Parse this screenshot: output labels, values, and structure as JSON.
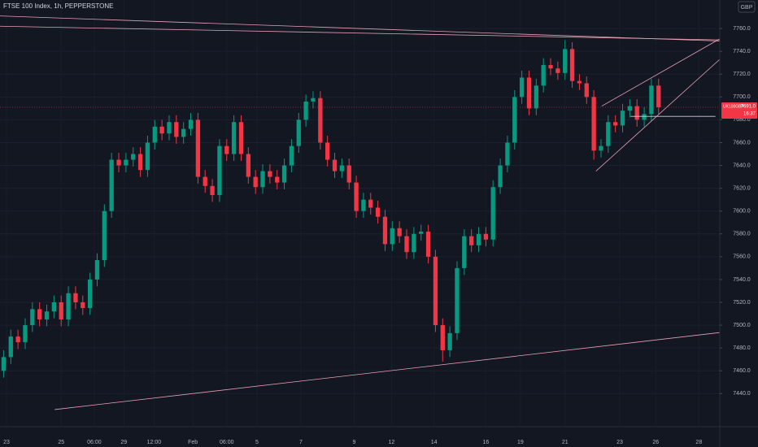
{
  "chart_data": {
    "type": "candlestick",
    "title": "FTSE 100 Index, 1h, PEPPERSTONE",
    "currency": "GBP",
    "up_color": "#089981",
    "down_color": "#f23645",
    "grid": true,
    "xlim": [
      0,
      100
    ],
    "ylim": [
      7411,
      7785
    ],
    "yticks": [
      {
        "value": 7440,
        "label": "7440.0"
      },
      {
        "value": 7460,
        "label": "7460.0"
      },
      {
        "value": 7480,
        "label": "7480.0"
      },
      {
        "value": 7500,
        "label": "7500.0"
      },
      {
        "value": 7520,
        "label": "7520.0"
      },
      {
        "value": 7540,
        "label": "7540.0"
      },
      {
        "value": 7560,
        "label": "7560.0"
      },
      {
        "value": 7580,
        "label": "7580.0"
      },
      {
        "value": 7600,
        "label": "7600.0"
      },
      {
        "value": 7620,
        "label": "7620.0"
      },
      {
        "value": 7640,
        "label": "7640.0"
      },
      {
        "value": 7660,
        "label": "7660.0"
      },
      {
        "value": 7680,
        "label": "7680.0"
      },
      {
        "value": 7700,
        "label": "7700.0"
      },
      {
        "value": 7720,
        "label": "7720.0"
      },
      {
        "value": 7740,
        "label": "7740.0"
      },
      {
        "value": 7760,
        "label": "7760.0"
      }
    ],
    "xticks": [
      {
        "value": 0.9,
        "label": "23"
      },
      {
        "value": 8.5,
        "label": "25"
      },
      {
        "value": 13.1,
        "label": "06:00"
      },
      {
        "value": 17.2,
        "label": "29"
      },
      {
        "value": 21.4,
        "label": "12:00"
      },
      {
        "value": 26.8,
        "label": "Feb"
      },
      {
        "value": 31.5,
        "label": "06:00"
      },
      {
        "value": 35.7,
        "label": "5"
      },
      {
        "value": 41.8,
        "label": "7"
      },
      {
        "value": 49.2,
        "label": "9"
      },
      {
        "value": 54.4,
        "label": "12"
      },
      {
        "value": 60.3,
        "label": "14"
      },
      {
        "value": 67.5,
        "label": "16"
      },
      {
        "value": 72.3,
        "label": "19"
      },
      {
        "value": 78.5,
        "label": "21"
      },
      {
        "value": 86.1,
        "label": "23"
      },
      {
        "value": 91.1,
        "label": "26"
      },
      {
        "value": 97.1,
        "label": "28"
      }
    ],
    "x": [
      0.5,
      1.5,
      2.5,
      3.5,
      4.5,
      5.5,
      6.5,
      7.5,
      8.5,
      9.5,
      10.5,
      11.5,
      12.5,
      13.5,
      14.5,
      15.5,
      16.5,
      17.5,
      18.5,
      19.5,
      20.5,
      21.5,
      22.5,
      23.5,
      24.5,
      25.5,
      26.5,
      27.5,
      28.5,
      29.5,
      30.5,
      31.5,
      32.5,
      33.5,
      34.5,
      35.5,
      36.5,
      37.5,
      38.5,
      39.5,
      40.5,
      41.5,
      42.5,
      43.5,
      44.5,
      45.5,
      46.5,
      47.5,
      48.5,
      49.5,
      50.5,
      51.5,
      52.5,
      53.5,
      54.5,
      55.5,
      56.5,
      57.5,
      58.5,
      59.5,
      60.5,
      61.5,
      62.5,
      63.5,
      64.5,
      65.5,
      66.5,
      67.5,
      68.5,
      69.5,
      70.5,
      71.5,
      72.5,
      73.5,
      74.5,
      75.5,
      76.5,
      77.5,
      78.5,
      79.5,
      80.5,
      81.5,
      82.5,
      83.5,
      84.5,
      85.5,
      86.5,
      87.5,
      88.5,
      89.5,
      90.5,
      91.5
    ],
    "open": [
      7460,
      7472,
      7490,
      7485,
      7500,
      7514,
      7505,
      7512,
      7520,
      7505,
      7528,
      7520,
      7515,
      7540,
      7557,
      7600,
      7645,
      7640,
      7645,
      7650,
      7636,
      7660,
      7674,
      7668,
      7678,
      7665,
      7672,
      7680,
      7630,
      7622,
      7614,
      7657,
      7650,
      7678,
      7650,
      7630,
      7621,
      7635,
      7630,
      7625,
      7640,
      7657,
      7680,
      7696,
      7699,
      7660,
      7645,
      7635,
      7640,
      7625,
      7600,
      7610,
      7603,
      7595,
      7571,
      7585,
      7578,
      7564,
      7580,
      7582,
      7560,
      7500,
      7478,
      7493,
      7550,
      7578,
      7570,
      7580,
      7575,
      7621,
      7640,
      7660,
      7700,
      7717,
      7690,
      7710,
      7728,
      7725,
      7721,
      7742,
      7714,
      7712,
      7700,
      7653,
      7657,
      7678,
      7675,
      7688,
      7692,
      7680,
      7685,
      7710
    ],
    "high": [
      7478,
      7496,
      7496,
      7506,
      7520,
      7520,
      7518,
      7526,
      7526,
      7534,
      7534,
      7526,
      7546,
      7563,
      7606,
      7651,
      7651,
      7651,
      7656,
      7656,
      7666,
      7680,
      7680,
      7684,
      7684,
      7678,
      7686,
      7686,
      7636,
      7628,
      7663,
      7663,
      7684,
      7684,
      7656,
      7636,
      7641,
      7641,
      7636,
      7646,
      7663,
      7686,
      7702,
      7705,
      7705,
      7666,
      7651,
      7646,
      7646,
      7631,
      7616,
      7616,
      7609,
      7601,
      7591,
      7591,
      7584,
      7586,
      7588,
      7588,
      7566,
      7506,
      7499,
      7556,
      7584,
      7584,
      7586,
      7586,
      7627,
      7646,
      7666,
      7706,
      7723,
      7723,
      7716,
      7734,
      7734,
      7731,
      7750,
      7748,
      7720,
      7718,
      7706,
      7663,
      7684,
      7684,
      7694,
      7698,
      7698,
      7691,
      7716,
      7716
    ],
    "low": [
      7454,
      7466,
      7479,
      7479,
      7494,
      7499,
      7499,
      7506,
      7499,
      7499,
      7514,
      7509,
      7509,
      7534,
      7551,
      7594,
      7634,
      7634,
      7639,
      7630,
      7630,
      7654,
      7662,
      7662,
      7659,
      7659,
      7666,
      7624,
      7616,
      7608,
      7608,
      7644,
      7644,
      7644,
      7624,
      7615,
      7615,
      7624,
      7619,
      7619,
      7634,
      7651,
      7674,
      7690,
      7654,
      7639,
      7629,
      7629,
      7619,
      7594,
      7594,
      7597,
      7589,
      7565,
      7565,
      7572,
      7558,
      7558,
      7574,
      7554,
      7494,
      7468,
      7472,
      7487,
      7544,
      7564,
      7564,
      7569,
      7569,
      7615,
      7634,
      7654,
      7694,
      7684,
      7684,
      7704,
      7719,
      7715,
      7715,
      7708,
      7706,
      7694,
      7645,
      7647,
      7651,
      7669,
      7669,
      7682,
      7674,
      7674,
      7679,
      7685
    ],
    "close": [
      7472,
      7490,
      7485,
      7500,
      7514,
      7505,
      7512,
      7520,
      7505,
      7528,
      7520,
      7515,
      7540,
      7557,
      7600,
      7645,
      7640,
      7645,
      7650,
      7636,
      7660,
      7674,
      7668,
      7678,
      7665,
      7672,
      7680,
      7630,
      7622,
      7614,
      7657,
      7650,
      7678,
      7650,
      7630,
      7621,
      7635,
      7630,
      7625,
      7640,
      7657,
      7680,
      7696,
      7699,
      7660,
      7645,
      7635,
      7640,
      7625,
      7600,
      7610,
      7603,
      7595,
      7571,
      7585,
      7578,
      7564,
      7580,
      7582,
      7560,
      7500,
      7478,
      7493,
      7550,
      7578,
      7570,
      7580,
      7575,
      7621,
      7640,
      7660,
      7700,
      7717,
      7690,
      7710,
      7728,
      7725,
      7721,
      7742,
      7714,
      7712,
      7700,
      7653,
      7657,
      7678,
      7675,
      7688,
      7692,
      7680,
      7685,
      7710,
      7691
    ],
    "trendlines": [
      {
        "color": "#e8a0b4",
        "x": [
          0,
          100
        ],
        "y": [
          7762,
          7750
        ]
      },
      {
        "color": "#e8a0b4",
        "x": [
          0,
          100
        ],
        "y": [
          7771,
          7749
        ]
      },
      {
        "color": "#e8a0b4",
        "x": [
          7.6,
          100
        ],
        "y": [
          7426,
          7493.5
        ]
      },
      {
        "color": "#e8a0b4",
        "x": [
          83.6,
          100
        ],
        "y": [
          7692,
          7751
        ]
      },
      {
        "color": "#e8a0b4",
        "x": [
          82.8,
          100
        ],
        "y": [
          7635,
          7733
        ]
      },
      {
        "color": "#d1d4dc",
        "x": [
          87.6,
          99.4
        ],
        "y": [
          7683,
          7683
        ]
      }
    ],
    "last_price": {
      "symbol": "UK100GBP",
      "value": 7691,
      "label": "7691.0",
      "countdown": "16:37",
      "color": "#f23645"
    }
  }
}
